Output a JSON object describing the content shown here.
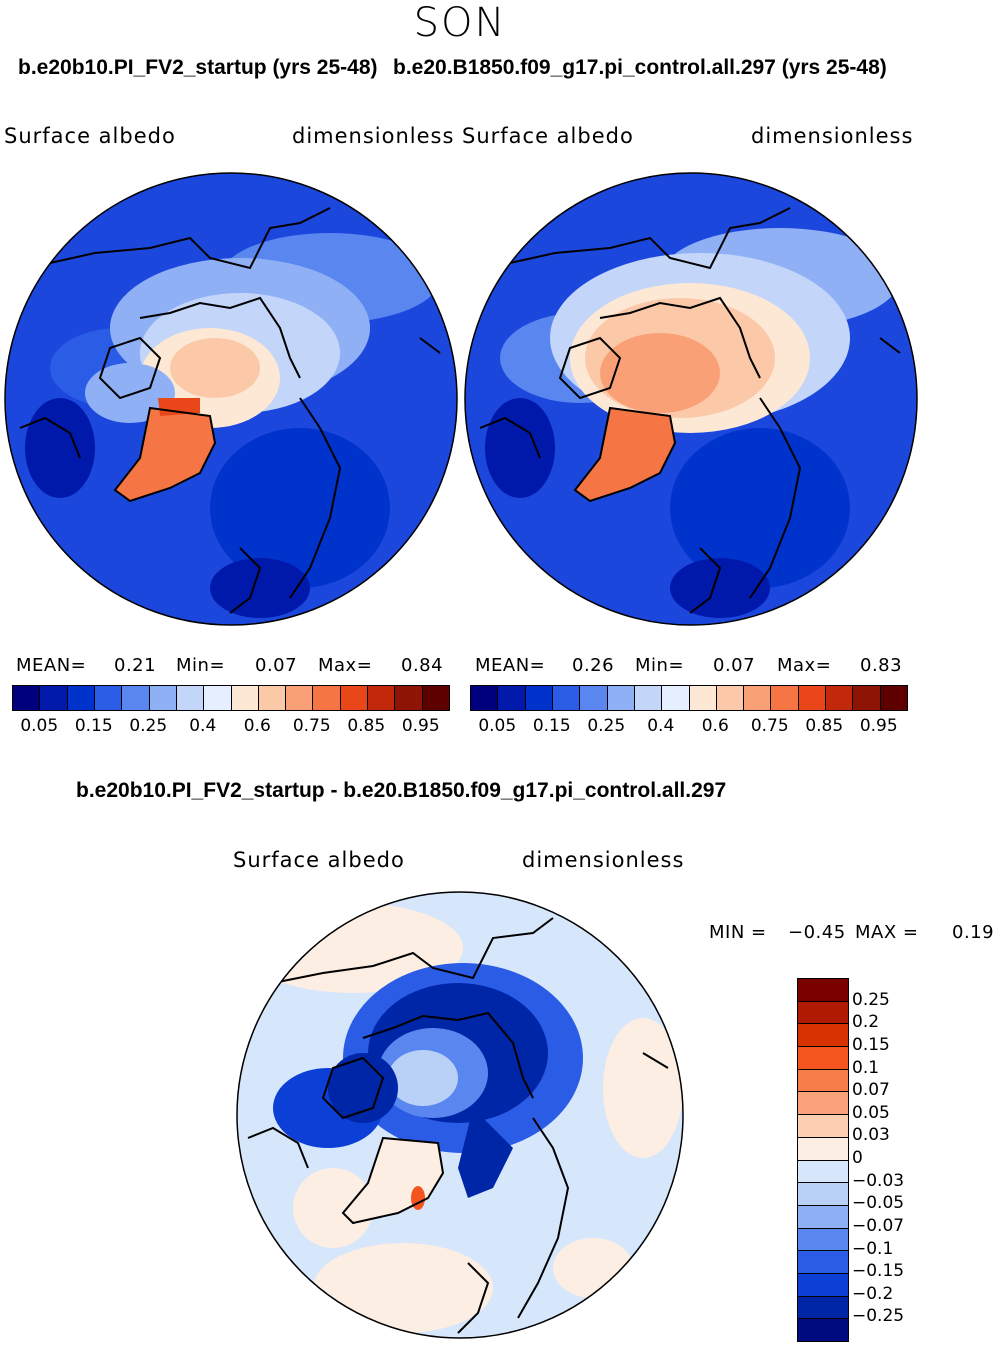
{
  "season": "SON",
  "left_case_title": "b.e20b10.PI_FV2_startup (yrs 25-48)",
  "right_case_title": "b.e20.B1850.f09_g17.pi_control.all.297 (yrs 25-48)",
  "panels": [
    {
      "variable": "Surface albedo",
      "units": "dimensionless",
      "mean_label": "MEAN=",
      "mean_value": "0.21",
      "min_label": "Min=",
      "min_value": "0.07",
      "max_label": "Max=",
      "max_value": "0.84"
    },
    {
      "variable": "Surface albedo",
      "units": "dimensionless",
      "mean_label": "MEAN=",
      "mean_value": "0.26",
      "min_label": "Min=",
      "min_value": "0.07",
      "max_label": "Max=",
      "max_value": "0.83"
    }
  ],
  "abs_colorbar": {
    "colors": [
      "#00007f",
      "#0019aa",
      "#0033cc",
      "#2a5ce6",
      "#5a86f0",
      "#8fb0f5",
      "#c3d6fa",
      "#e5efff",
      "#fde8d6",
      "#fcc9a8",
      "#f9a077",
      "#f57545",
      "#e9471a",
      "#c2280a",
      "#8e1505",
      "#5e0000"
    ],
    "ticks": [
      "0.05",
      "0.15",
      "0.25",
      "0.4",
      "0.6",
      "0.75",
      "0.85",
      "0.95"
    ]
  },
  "diff_title": "b.e20b10.PI_FV2_startup - b.e20.B1850.f09_g17.pi_control.all.297",
  "diff_panel": {
    "variable": "Surface albedo",
    "units": "dimensionless",
    "min_label": "MIN =",
    "min_value": "−0.45",
    "max_label": "MAX =",
    "max_value": "0.19"
  },
  "diff_colorbar": {
    "colors": [
      "#7a0000",
      "#b01a00",
      "#d83200",
      "#f4541e",
      "#f77e4b",
      "#fba27b",
      "#fdd0b3",
      "#fdeee3",
      "#d6e6fb",
      "#b9d0f7",
      "#8fb0f5",
      "#5a86f0",
      "#2a5ce6",
      "#0b3fd6",
      "#0026a8",
      "#000b80"
    ],
    "ticks": [
      "0.25",
      "0.2",
      "0.15",
      "0.1",
      "0.07",
      "0.05",
      "0.03",
      "0",
      "−0.03",
      "−0.05",
      "−0.07",
      "−0.1",
      "−0.15",
      "−0.2",
      "−0.25"
    ]
  }
}
